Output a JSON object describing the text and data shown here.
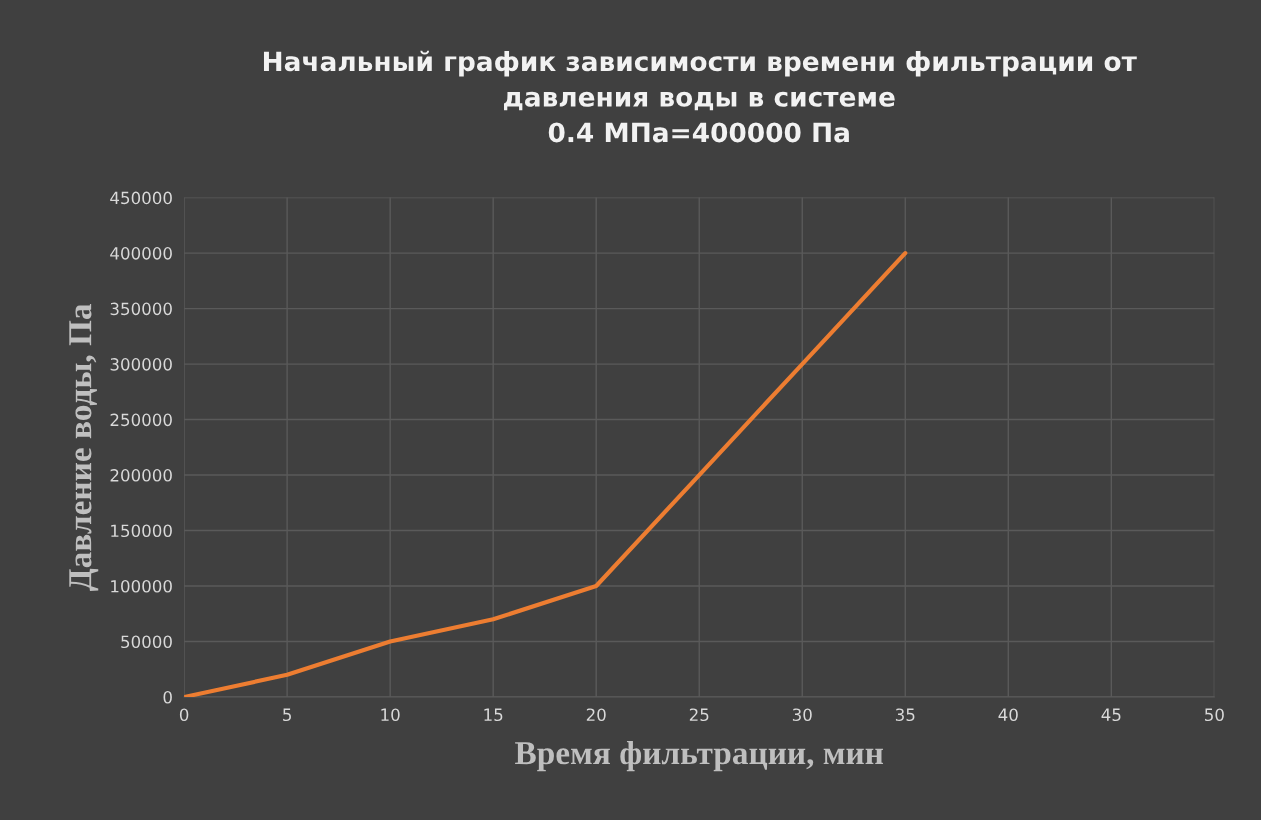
{
  "chart_data": {
    "type": "line",
    "title": "Начальный график зависимости времени фильтрации от\nдавления воды в системе\n0.4 МПа=400000 Па",
    "xlabel": "Время фильтрации, мин",
    "ylabel": "Давление воды, Па",
    "x": [
      0,
      5,
      10,
      15,
      20,
      25,
      30,
      35
    ],
    "series": [
      {
        "color": "#ed7d31",
        "values": [
          0,
          20000,
          50000,
          70000,
          100000,
          200000,
          300000,
          400000
        ]
      }
    ],
    "xlim": [
      0,
      50
    ],
    "xticks": [
      0,
      5,
      10,
      15,
      20,
      25,
      30,
      35,
      40,
      45,
      50
    ],
    "ylim": [
      0,
      450000
    ],
    "yticks": [
      0,
      50000,
      100000,
      150000,
      200000,
      250000,
      300000,
      350000,
      400000,
      450000
    ],
    "grid": true,
    "legend": false,
    "marker": "none",
    "line_style": "solid"
  }
}
